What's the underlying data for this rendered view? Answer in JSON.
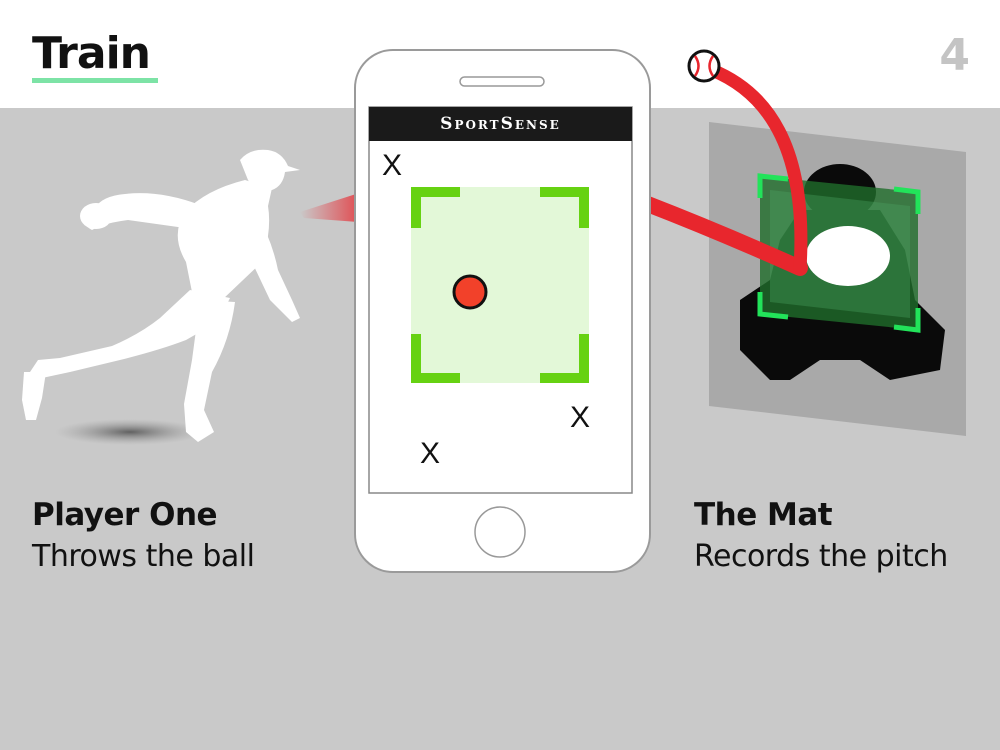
{
  "title": "Train",
  "page_number": "4",
  "app": {
    "brand": "SportSense",
    "markers": [
      "X",
      "X",
      "X"
    ]
  },
  "left": {
    "heading": "Player One",
    "subheading": "Throws the ball"
  },
  "right": {
    "heading": "The Mat",
    "subheading": "Records the pitch"
  },
  "colors": {
    "accent_underline": "#7de3a6",
    "trajectory": "#e8262d",
    "zone_bracket": "#66d212",
    "mat_green": "#2e6b3a",
    "background_band": "#c9c9c9"
  }
}
